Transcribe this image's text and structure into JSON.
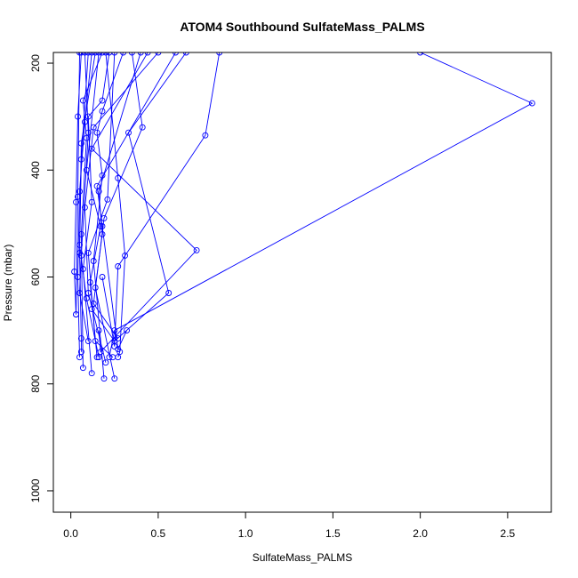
{
  "chart_data": {
    "type": "line",
    "title": "ATOM4 Southbound SulfateMass_PALMS",
    "xlabel": "SulfateMass_PALMS",
    "ylabel": "Pressure (mbar)",
    "xlim": [
      -0.1,
      2.75
    ],
    "ylim": [
      1040,
      180
    ],
    "y_reversed": true,
    "x_ticks": [
      0,
      0.5,
      1,
      1.5,
      2,
      2.5
    ],
    "x_tick_labels": [
      "0.0",
      "0.5",
      "1.0",
      "1.5",
      "2.0",
      "2.5"
    ],
    "y_ticks": [
      200,
      400,
      600,
      800,
      1000
    ],
    "y_tick_labels": [
      "200",
      "400",
      "600",
      "800",
      "1000"
    ],
    "grid": false,
    "legend": "none",
    "color": "#0000ff",
    "marker": "open-circle",
    "series": [
      {
        "points": [
          [
            0.06,
            180
          ],
          [
            0.04,
            300
          ],
          [
            0.03,
            460
          ],
          [
            0.02,
            590
          ],
          [
            0.03,
            670
          ]
        ]
      },
      {
        "points": [
          [
            0.12,
            180
          ],
          [
            0.08,
            310
          ],
          [
            0.05,
            440
          ],
          [
            0.04,
            600
          ],
          [
            0.05,
            750
          ]
        ]
      },
      {
        "points": [
          [
            0.18,
            180
          ],
          [
            0.07,
            270
          ],
          [
            0.09,
            340
          ],
          [
            0.06,
            520
          ],
          [
            0.07,
            770
          ]
        ]
      },
      {
        "points": [
          [
            0.22,
            180
          ],
          [
            0.18,
            270
          ],
          [
            0.1,
            300
          ],
          [
            0.12,
            460
          ],
          [
            0.07,
            585
          ],
          [
            0.12,
            780
          ]
        ]
      },
      {
        "points": [
          [
            0.3,
            180
          ],
          [
            0.18,
            290
          ],
          [
            0.15,
            330
          ],
          [
            0.18,
            410
          ],
          [
            0.13,
            570
          ],
          [
            0.19,
            790
          ]
        ]
      },
      {
        "points": [
          [
            0.4,
            180
          ],
          [
            0.16,
            440
          ],
          [
            0.18,
            520
          ],
          [
            0.14,
            620
          ],
          [
            0.25,
            790
          ]
        ]
      },
      {
        "points": [
          [
            0.5,
            180
          ],
          [
            0.13,
            320
          ],
          [
            0.08,
            470
          ],
          [
            0.1,
            630
          ],
          [
            0.2,
            760
          ]
        ]
      },
      {
        "points": [
          [
            0.14,
            180
          ],
          [
            0.06,
            350
          ],
          [
            0.05,
            540
          ],
          [
            0.09,
            640
          ],
          [
            0.16,
            750
          ]
        ]
      },
      {
        "points": [
          [
            0.25,
            180
          ],
          [
            0.21,
            455
          ],
          [
            0.1,
            555
          ],
          [
            0.14,
            720
          ],
          [
            0.24,
            750
          ]
        ]
      },
      {
        "points": [
          [
            0.35,
            180
          ],
          [
            0.41,
            320
          ],
          [
            0.19,
            490
          ],
          [
            0.13,
            650
          ],
          [
            0.27,
            715
          ]
        ]
      },
      {
        "points": [
          [
            0.2,
            180
          ],
          [
            0.27,
            415
          ],
          [
            0.31,
            560
          ],
          [
            0.28,
            740
          ],
          [
            0.27,
            750
          ]
        ]
      },
      {
        "points": [
          [
            0.1,
            180
          ],
          [
            0.06,
            380
          ],
          [
            0.05,
            555
          ],
          [
            0.06,
            715
          ],
          [
            0.06,
            740
          ]
        ]
      },
      {
        "points": [
          [
            0.08,
            180
          ],
          [
            0.1,
            330
          ],
          [
            0.06,
            560
          ],
          [
            0.05,
            630
          ],
          [
            0.1,
            720
          ]
        ]
      },
      {
        "points": [
          [
            0.16,
            180
          ],
          [
            0.09,
            400
          ],
          [
            0.17,
            505
          ],
          [
            0.11,
            610
          ],
          [
            0.15,
            750
          ]
        ]
      },
      {
        "points": [
          [
            0.6,
            180
          ],
          [
            0.15,
            430
          ],
          [
            0.18,
            505
          ],
          [
            0.27,
            735
          ],
          [
            0.32,
            700
          ]
        ]
      },
      {
        "points": [
          [
            0.05,
            180
          ],
          [
            0.04,
            450
          ],
          [
            0.03,
            670
          ]
        ]
      },
      {
        "points": [
          [
            0.66,
            180
          ],
          [
            0.33,
            330
          ],
          [
            0.56,
            630
          ],
          [
            0.25,
            720
          ],
          [
            0.12,
            660
          ]
        ]
      },
      {
        "points": [
          [
            0.85,
            180
          ],
          [
            0.77,
            335
          ],
          [
            0.27,
            580
          ],
          [
            0.25,
            730
          ],
          [
            0.18,
            600
          ]
        ]
      },
      {
        "points": [
          [
            0.44,
            180
          ],
          [
            0.12,
            360
          ],
          [
            0.72,
            550
          ],
          [
            0.17,
            740
          ],
          [
            0.16,
            700
          ]
        ]
      },
      {
        "points": [
          [
            2.0,
            180
          ],
          [
            2.64,
            275
          ],
          [
            0.25,
            700
          ],
          [
            0.22,
            750
          ]
        ]
      }
    ]
  }
}
